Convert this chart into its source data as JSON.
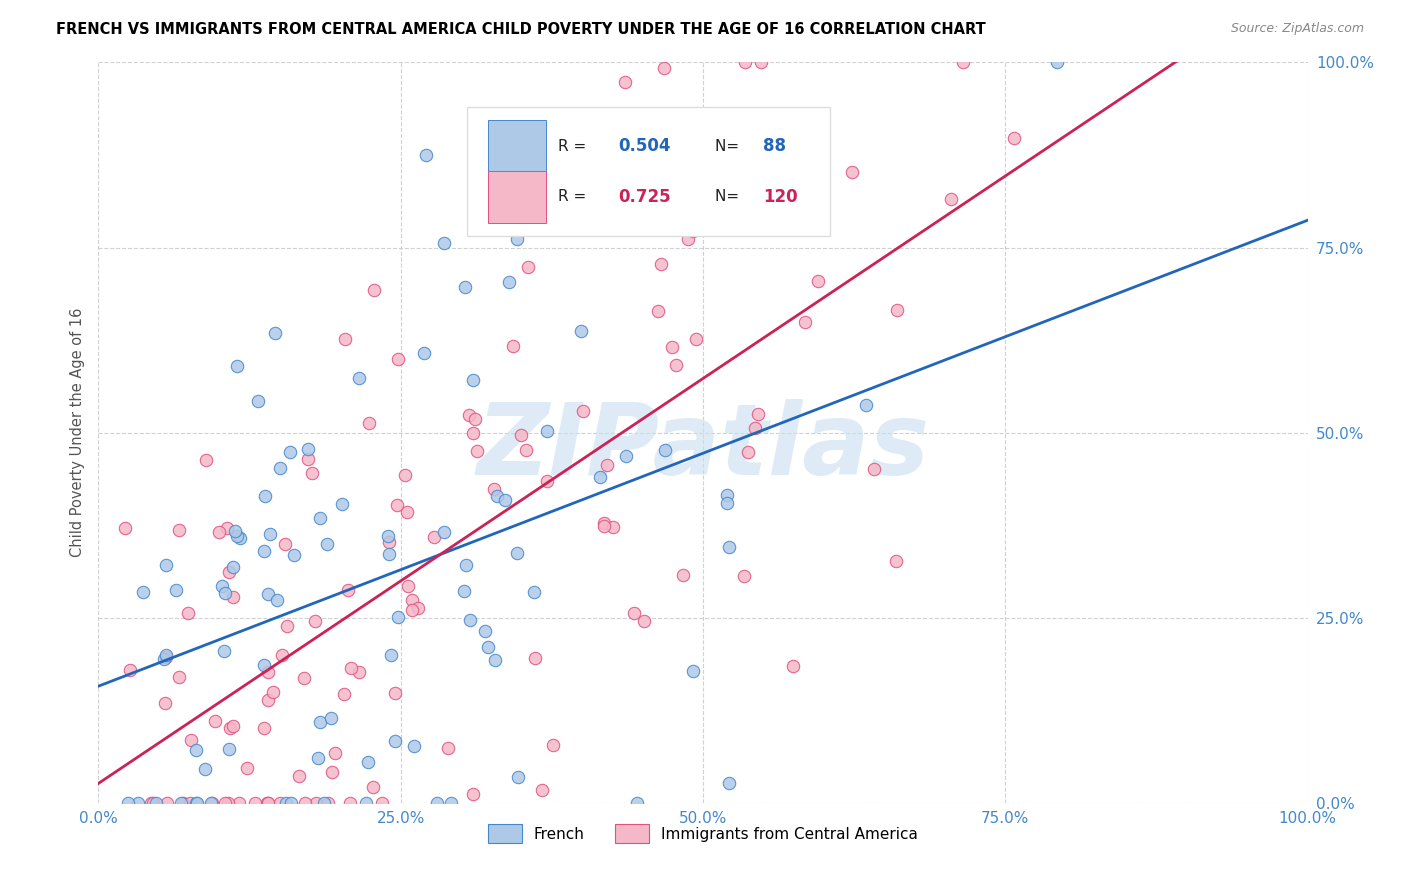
{
  "title": "FRENCH VS IMMIGRANTS FROM CENTRAL AMERICA CHILD POVERTY UNDER THE AGE OF 16 CORRELATION CHART",
  "source": "Source: ZipAtlas.com",
  "ylabel": "Child Poverty Under the Age of 16",
  "legend_labels": [
    "French",
    "Immigrants from Central America"
  ],
  "french_R": 0.504,
  "french_N": 88,
  "central_R": 0.725,
  "central_N": 120,
  "french_color": "#aec8e8",
  "central_color": "#f4b8c8",
  "french_edge_color": "#4488cc",
  "central_edge_color": "#e05080",
  "french_line_color": "#2266bb",
  "central_line_color": "#cc2255",
  "watermark_color": "#c8dff0",
  "background_color": "#ffffff",
  "grid_color": "#cccccc",
  "axis_tick_color": "#4488cc",
  "title_color": "#000000",
  "source_color": "#888888",
  "ylabel_color": "#555555",
  "xlim": [
    0,
    1
  ],
  "ylim": [
    0,
    1
  ],
  "xticks": [
    0.0,
    0.25,
    0.5,
    0.75,
    1.0
  ],
  "yticks": [
    0.0,
    0.25,
    0.5,
    0.75,
    1.0
  ],
  "xticklabels": [
    "0.0%",
    "25.0%",
    "50.0%",
    "75.0%",
    "100.0%"
  ],
  "yticklabels": [
    "0.0%",
    "25.0%",
    "50.0%",
    "75.0%",
    "100.0%"
  ],
  "dot_size": 80,
  "french_seed": 42,
  "central_seed": 99
}
